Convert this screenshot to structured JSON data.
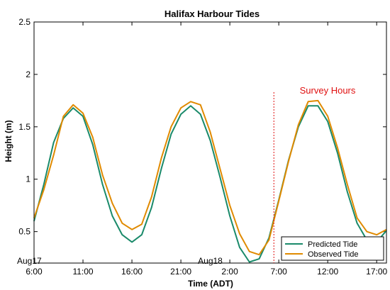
{
  "chart_data": {
    "type": "line",
    "title": "Halifax Harbour Tides",
    "xlabel": "Time (ADT)",
    "ylabel": "Height (m)",
    "x_tick_labels": [
      "6:00",
      "11:00",
      "16:00",
      "21:00",
      "2:00",
      "7:00",
      "12:00",
      "17:00"
    ],
    "x_tick_hours": [
      0,
      5,
      10,
      15,
      20,
      25,
      30,
      35
    ],
    "xlim_hours": [
      0,
      36
    ],
    "date_labels": [
      {
        "text": "Aug17",
        "hour": 0
      },
      {
        "text": "Aug18",
        "hour": 18
      }
    ],
    "ylim": [
      0.2,
      2.5
    ],
    "y_ticks": [
      0.5,
      1,
      1.5,
      2,
      2.5
    ],
    "y_tick_labels": [
      "0.5",
      "1",
      "1.5",
      "2",
      "2.5"
    ],
    "x_hours": [
      0,
      1,
      2,
      3,
      4,
      5,
      6,
      7,
      8,
      9,
      10,
      11,
      12,
      13,
      14,
      15,
      16,
      17,
      18,
      19,
      20,
      21,
      22,
      23,
      24,
      25,
      26,
      27,
      28,
      29,
      30,
      31,
      32,
      33,
      34,
      35,
      36
    ],
    "series": [
      {
        "name": "Predicted Tide",
        "color": "#1a8a6a",
        "values": [
          0.6,
          0.95,
          1.35,
          1.58,
          1.68,
          1.6,
          1.33,
          0.95,
          0.65,
          0.47,
          0.4,
          0.47,
          0.73,
          1.1,
          1.43,
          1.62,
          1.7,
          1.62,
          1.37,
          1.02,
          0.65,
          0.35,
          0.21,
          0.24,
          0.44,
          0.8,
          1.18,
          1.5,
          1.7,
          1.7,
          1.55,
          1.25,
          0.88,
          0.58,
          0.42,
          0.4,
          0.51
        ]
      },
      {
        "name": "Observed Tide",
        "color": "#e08a00",
        "values": [
          0.63,
          0.9,
          1.23,
          1.6,
          1.71,
          1.63,
          1.4,
          1.04,
          0.77,
          0.58,
          0.52,
          0.57,
          0.83,
          1.2,
          1.5,
          1.68,
          1.74,
          1.71,
          1.45,
          1.1,
          0.75,
          0.48,
          0.31,
          0.28,
          0.42,
          0.79,
          1.17,
          1.52,
          1.74,
          1.75,
          1.6,
          1.3,
          0.95,
          0.63,
          0.5,
          0.47,
          0.52
        ]
      }
    ],
    "annotations": [
      {
        "text": "Survey Hours",
        "color": "#e01010",
        "marker_hour": 24.5
      }
    ],
    "legend_position": "bottom-right",
    "grid": false
  }
}
